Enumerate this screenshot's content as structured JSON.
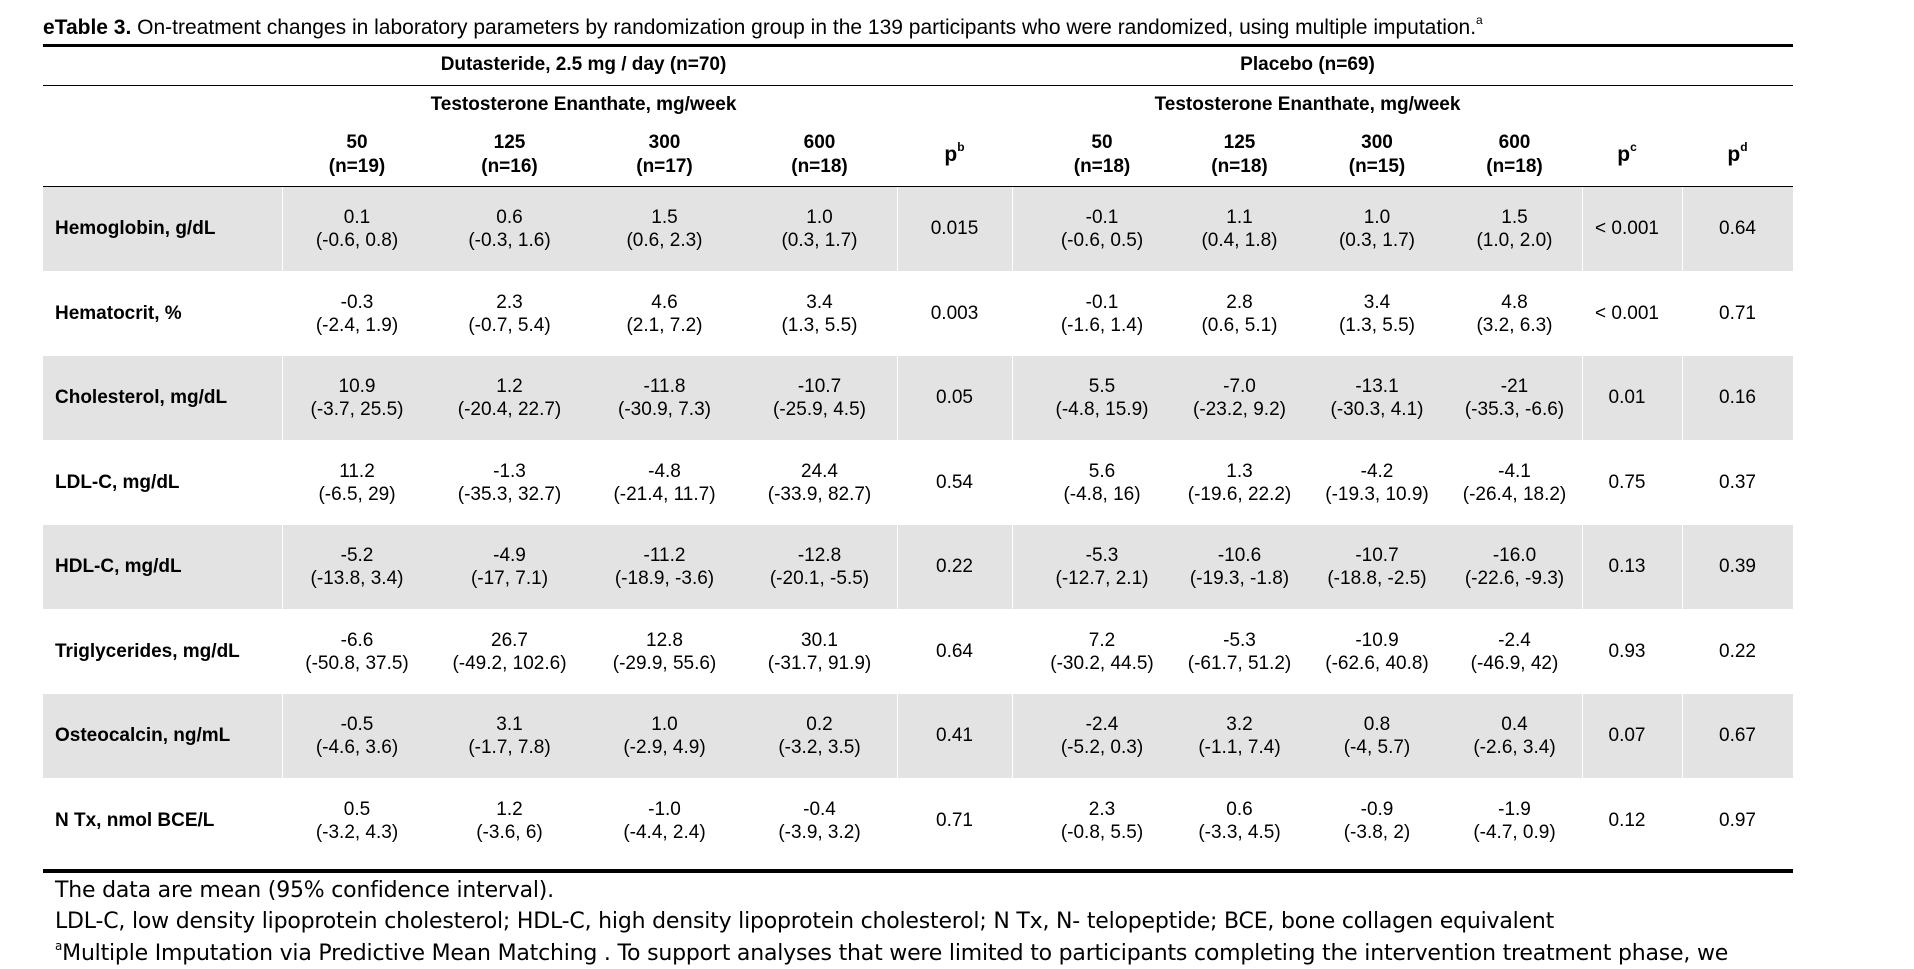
{
  "title": {
    "label": "eTable 3.",
    "text": " On-treatment changes in laboratory parameters by randomization group in the 139 participants who were randomized, using multiple imputation.",
    "sup": "a"
  },
  "groups": {
    "dutasteride": "Dutasteride, 2.5 mg / day (n=70)",
    "placebo": "Placebo (n=69)",
    "dose_label": "Testosterone Enanthate, mg/week"
  },
  "columns": {
    "dutasteride": [
      {
        "dose": "50",
        "n": "(n=19)"
      },
      {
        "dose": "125",
        "n": "(n=16)"
      },
      {
        "dose": "300",
        "n": "(n=17)"
      },
      {
        "dose": "600",
        "n": "(n=18)"
      }
    ],
    "placebo": [
      {
        "dose": "50",
        "n": "(n=18)"
      },
      {
        "dose": "125",
        "n": "(n=18)"
      },
      {
        "dose": "300",
        "n": "(n=15)"
      },
      {
        "dose": "600",
        "n": "(n=18)"
      }
    ],
    "p_b": {
      "p": "p",
      "sup": "b"
    },
    "p_c": {
      "p": "p",
      "sup": "c"
    },
    "p_d": {
      "p": "p",
      "sup": "d"
    }
  },
  "rows": [
    {
      "label": "Hemoglobin, g/dL",
      "dut": [
        [
          "0.1",
          "(-0.6, 0.8)"
        ],
        [
          "0.6",
          "(-0.3, 1.6)"
        ],
        [
          "1.5",
          "(0.6, 2.3)"
        ],
        [
          "1.0",
          "(0.3, 1.7)"
        ]
      ],
      "pb": "0.015",
      "pla": [
        [
          "-0.1",
          "(-0.6, 0.5)"
        ],
        [
          "1.1",
          "(0.4, 1.8)"
        ],
        [
          "1.0",
          "(0.3, 1.7)"
        ],
        [
          "1.5",
          "(1.0, 2.0)"
        ]
      ],
      "pc": "< 0.001",
      "pd": "0.64"
    },
    {
      "label": "Hematocrit, %",
      "dut": [
        [
          "-0.3",
          "(-2.4, 1.9)"
        ],
        [
          "2.3",
          "(-0.7, 5.4)"
        ],
        [
          "4.6",
          "(2.1, 7.2)"
        ],
        [
          "3.4",
          "(1.3, 5.5)"
        ]
      ],
      "pb": "0.003",
      "pla": [
        [
          "-0.1",
          "(-1.6, 1.4)"
        ],
        [
          "2.8",
          "(0.6, 5.1)"
        ],
        [
          "3.4",
          "(1.3, 5.5)"
        ],
        [
          "4.8",
          "(3.2, 6.3)"
        ]
      ],
      "pc": "< 0.001",
      "pd": "0.71"
    },
    {
      "label": "Cholesterol, mg/dL",
      "dut": [
        [
          "10.9",
          "(-3.7, 25.5)"
        ],
        [
          "1.2",
          "(-20.4, 22.7)"
        ],
        [
          "-11.8",
          "(-30.9, 7.3)"
        ],
        [
          "-10.7",
          "(-25.9, 4.5)"
        ]
      ],
      "pb": "0.05",
      "pla": [
        [
          "5.5",
          "(-4.8, 15.9)"
        ],
        [
          "-7.0",
          "(-23.2, 9.2)"
        ],
        [
          "-13.1",
          "(-30.3, 4.1)"
        ],
        [
          "-21",
          "(-35.3, -6.6)"
        ]
      ],
      "pc": "0.01",
      "pd": "0.16"
    },
    {
      "label": "LDL-C, mg/dL",
      "dut": [
        [
          "11.2",
          "(-6.5, 29)"
        ],
        [
          "-1.3",
          "(-35.3, 32.7)"
        ],
        [
          "-4.8",
          "(-21.4, 11.7)"
        ],
        [
          "24.4",
          "(-33.9, 82.7)"
        ]
      ],
      "pb": "0.54",
      "pla": [
        [
          "5.6",
          "(-4.8, 16)"
        ],
        [
          "1.3",
          "(-19.6, 22.2)"
        ],
        [
          "-4.2",
          "(-19.3, 10.9)"
        ],
        [
          "-4.1",
          "(-26.4, 18.2)"
        ]
      ],
      "pc": "0.75",
      "pd": "0.37"
    },
    {
      "label": "HDL-C, mg/dL",
      "dut": [
        [
          "-5.2",
          "(-13.8, 3.4)"
        ],
        [
          "-4.9",
          "(-17, 7.1)"
        ],
        [
          "-11.2",
          "(-18.9, -3.6)"
        ],
        [
          "-12.8",
          "(-20.1, -5.5)"
        ]
      ],
      "pb": "0.22",
      "pla": [
        [
          "-5.3",
          "(-12.7, 2.1)"
        ],
        [
          "-10.6",
          "(-19.3, -1.8)"
        ],
        [
          "-10.7",
          "(-18.8, -2.5)"
        ],
        [
          "-16.0",
          "(-22.6, -9.3)"
        ]
      ],
      "pc": "0.13",
      "pd": "0.39"
    },
    {
      "label": "Triglycerides, mg/dL",
      "dut": [
        [
          "-6.6",
          "(-50.8, 37.5)"
        ],
        [
          "26.7",
          "(-49.2, 102.6)"
        ],
        [
          "12.8",
          "(-29.9, 55.6)"
        ],
        [
          "30.1",
          "(-31.7, 91.9)"
        ]
      ],
      "pb": "0.64",
      "pla": [
        [
          "7.2",
          "(-30.2, 44.5)"
        ],
        [
          "-5.3",
          "(-61.7, 51.2)"
        ],
        [
          "-10.9",
          "(-62.6, 40.8)"
        ],
        [
          "-2.4",
          "(-46.9, 42)"
        ]
      ],
      "pc": "0.93",
      "pd": "0.22"
    },
    {
      "label": "Osteocalcin, ng/mL",
      "dut": [
        [
          "-0.5",
          "(-4.6, 3.6)"
        ],
        [
          "3.1",
          "(-1.7, 7.8)"
        ],
        [
          "1.0",
          "(-2.9, 4.9)"
        ],
        [
          "0.2",
          "(-3.2, 3.5)"
        ]
      ],
      "pb": "0.41",
      "pla": [
        [
          "-2.4",
          "(-5.2, 0.3)"
        ],
        [
          "3.2",
          "(-1.1, 7.4)"
        ],
        [
          "0.8",
          "(-4, 5.7)"
        ],
        [
          "0.4",
          "(-2.6, 3.4)"
        ]
      ],
      "pc": "0.07",
      "pd": "0.67"
    },
    {
      "label": "N Tx, nmol BCE/L",
      "dut": [
        [
          "0.5",
          "(-3.2, 4.3)"
        ],
        [
          "1.2",
          "(-3.6, 6)"
        ],
        [
          "-1.0",
          "(-4.4, 2.4)"
        ],
        [
          "-0.4",
          "(-3.9, 3.2)"
        ]
      ],
      "pb": "0.71",
      "pla": [
        [
          "2.3",
          "(-0.8, 5.5)"
        ],
        [
          "0.6",
          "(-3.3, 4.5)"
        ],
        [
          "-0.9",
          "(-3.8, 2)"
        ],
        [
          "-1.9",
          "(-4.7, 0.9)"
        ]
      ],
      "pc": "0.12",
      "pd": "0.97"
    }
  ],
  "footnotes": {
    "data_note": "The data are mean (95% confidence interval).",
    "abbrev": "LDL-C, low density lipoprotein cholesterol; HDL-C, high density lipoprotein cholesterol; N Tx, N- telopeptide; BCE, bone collagen equivalent",
    "a_sup": "a",
    "a_text": "Multiple Imputation via Predictive Mean Matching . To support analyses that were limited to participants completing the intervention treatment phase, we"
  },
  "colors": {
    "shade": "#e3e3e3",
    "rule": "#000000"
  }
}
